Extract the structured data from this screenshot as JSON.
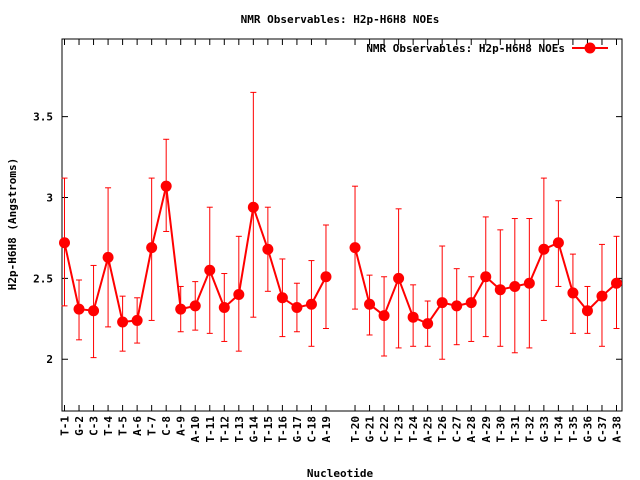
{
  "chart_data": {
    "type": "line",
    "title": "NMR Observables: H2p-H6H8 NOEs",
    "xlabel": "Nucleotide",
    "ylabel": "H2p-H6H8 (Angstroms)",
    "ylim": [
      1.68,
      3.98
    ],
    "yticks": [
      "2",
      "2.5",
      "3",
      "3.5"
    ],
    "ytick_values": [
      2,
      2.5,
      3,
      3.5
    ],
    "grid": false,
    "legend_position": "top-right",
    "colors": {
      "series": "#ff0000",
      "axes": "#000000"
    },
    "categories": [
      "T-1",
      "G-2",
      "C-3",
      "T-4",
      "T-5",
      "A-6",
      "T-7",
      "C-8",
      "A-9",
      "A-10",
      "T-11",
      "T-12",
      "T-13",
      "G-14",
      "T-15",
      "T-16",
      "G-17",
      "C-18",
      "A-19",
      "T-20",
      "G-21",
      "C-22",
      "T-23",
      "T-24",
      "A-25",
      "T-26",
      "C-27",
      "A-28",
      "A-29",
      "T-30",
      "T-31",
      "T-32",
      "G-33",
      "T-34",
      "T-35",
      "G-36",
      "C-37",
      "A-38"
    ],
    "series": [
      {
        "name": "NMR Observables: H2p-H6H8 NOEs",
        "values": [
          2.72,
          2.31,
          2.3,
          2.63,
          2.23,
          2.24,
          2.69,
          3.07,
          2.31,
          2.33,
          2.55,
          2.32,
          2.4,
          2.94,
          2.68,
          2.38,
          2.32,
          2.34,
          2.51,
          2.69,
          2.34,
          2.27,
          2.5,
          2.26,
          2.22,
          2.35,
          2.33,
          2.35,
          2.51,
          2.43,
          2.45,
          2.47,
          2.68,
          2.72,
          2.41,
          2.3,
          2.39,
          2.47
        ],
        "err_low": [
          2.33,
          2.12,
          2.01,
          2.2,
          2.05,
          2.1,
          2.24,
          2.79,
          2.17,
          2.18,
          2.16,
          2.11,
          2.05,
          2.26,
          2.42,
          2.14,
          2.17,
          2.08,
          2.19,
          2.31,
          2.15,
          2.02,
          2.07,
          2.08,
          2.08,
          2.0,
          2.09,
          2.11,
          2.14,
          2.08,
          2.04,
          2.07,
          2.24,
          2.45,
          2.16,
          2.16,
          2.08,
          2.19
        ],
        "err_high": [
          3.12,
          2.49,
          2.58,
          3.06,
          2.39,
          2.38,
          3.12,
          3.36,
          2.45,
          2.48,
          2.94,
          2.53,
          2.76,
          3.65,
          2.94,
          2.62,
          2.47,
          2.61,
          2.83,
          3.07,
          2.52,
          2.51,
          2.93,
          2.46,
          2.36,
          2.7,
          2.56,
          2.51,
          2.88,
          2.8,
          2.87,
          2.87,
          3.12,
          2.98,
          2.65,
          2.45,
          2.71,
          2.76
        ]
      }
    ]
  }
}
